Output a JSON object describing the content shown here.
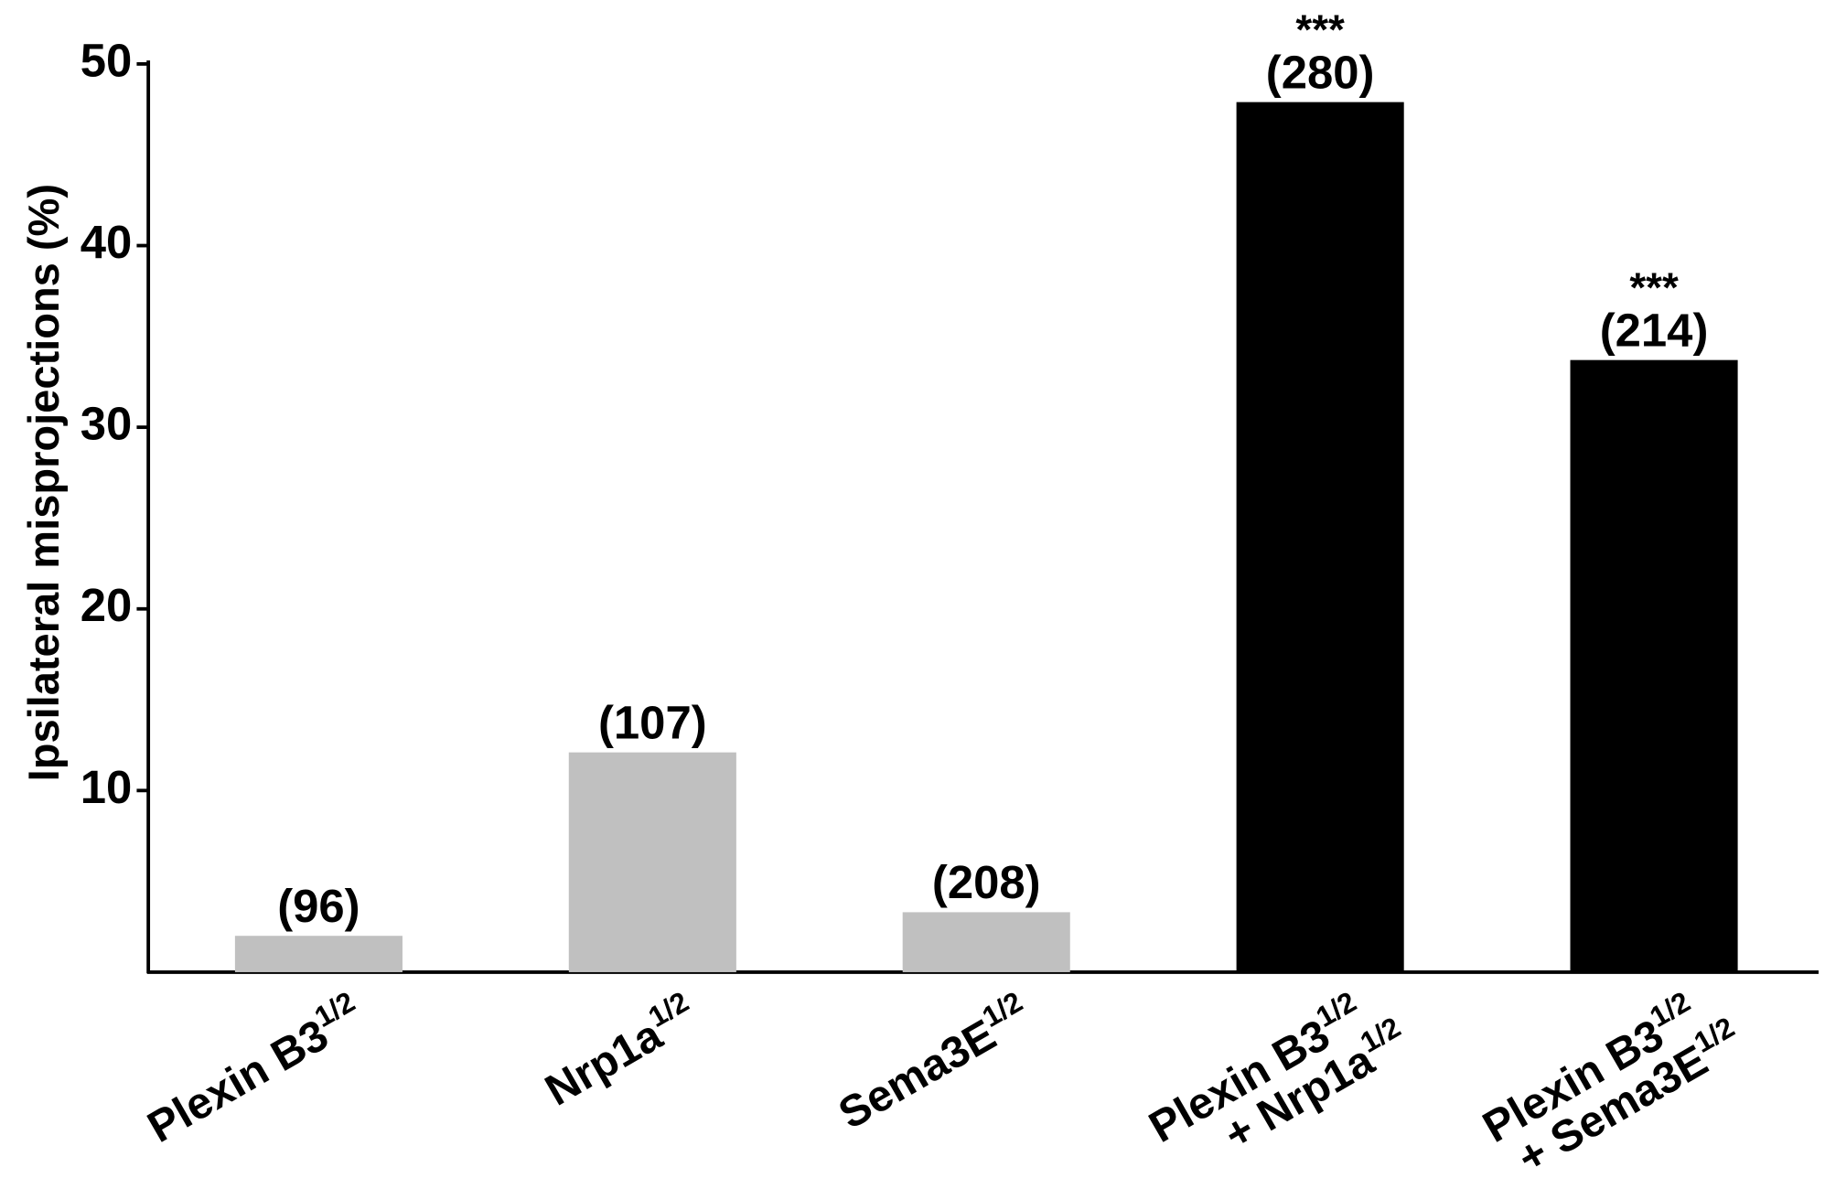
{
  "chart_data": {
    "type": "bar",
    "ylabel": "Ipsilateral misprojections (%)",
    "categories": [
      [
        [
          "Plexin B3",
          "1/2"
        ]
      ],
      [
        [
          "Nrp1a",
          "1/2"
        ]
      ],
      [
        [
          "Sema3E",
          "1/2"
        ]
      ],
      [
        [
          "Plexin B3",
          "1/2"
        ],
        [
          "+ Nrp1a",
          "1/2"
        ]
      ],
      [
        [
          "Plexin B3",
          "1/2"
        ],
        [
          "+ Sema3E",
          "1/2"
        ]
      ]
    ],
    "values": [
      2.0,
      12.1,
      3.3,
      47.9,
      33.7
    ],
    "n_labels": [
      "(96)",
      "(107)",
      "(208)",
      "(280)",
      "(214)"
    ],
    "significance": [
      null,
      null,
      null,
      "***",
      "***"
    ],
    "colors": [
      "#c0c0c0",
      "#c0c0c0",
      "#c0c0c0",
      "#000000",
      "#000000"
    ],
    "ylim": [
      0,
      50
    ],
    "yticks": [
      10,
      20,
      30,
      40,
      50
    ],
    "grid": false
  }
}
